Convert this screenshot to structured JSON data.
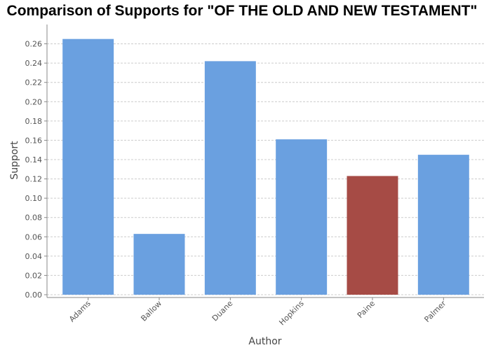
{
  "chart_data": {
    "type": "bar",
    "title": "Comparison of Supports for \"OF THE OLD AND NEW TESTAMENT\"",
    "xlabel": "Author",
    "ylabel": "Support",
    "categories": [
      "Adams",
      "Ballow",
      "Duane",
      "Hopkins",
      "Paine",
      "Palmer"
    ],
    "values": [
      0.265,
      0.063,
      0.242,
      0.161,
      0.123,
      0.145
    ],
    "highlight": "Paine",
    "ylim": [
      0,
      0.28
    ],
    "yticks": [
      "0.00",
      "0.02",
      "0.04",
      "0.06",
      "0.08",
      "0.10",
      "0.12",
      "0.14",
      "0.16",
      "0.18",
      "0.20",
      "0.22",
      "0.24",
      "0.26"
    ],
    "grid": true,
    "colors": {
      "bar": "#6aa0e0",
      "highlight": "#a64b45",
      "grid": "#cccccc",
      "axis": "#888888",
      "background": "#ffffff"
    }
  }
}
